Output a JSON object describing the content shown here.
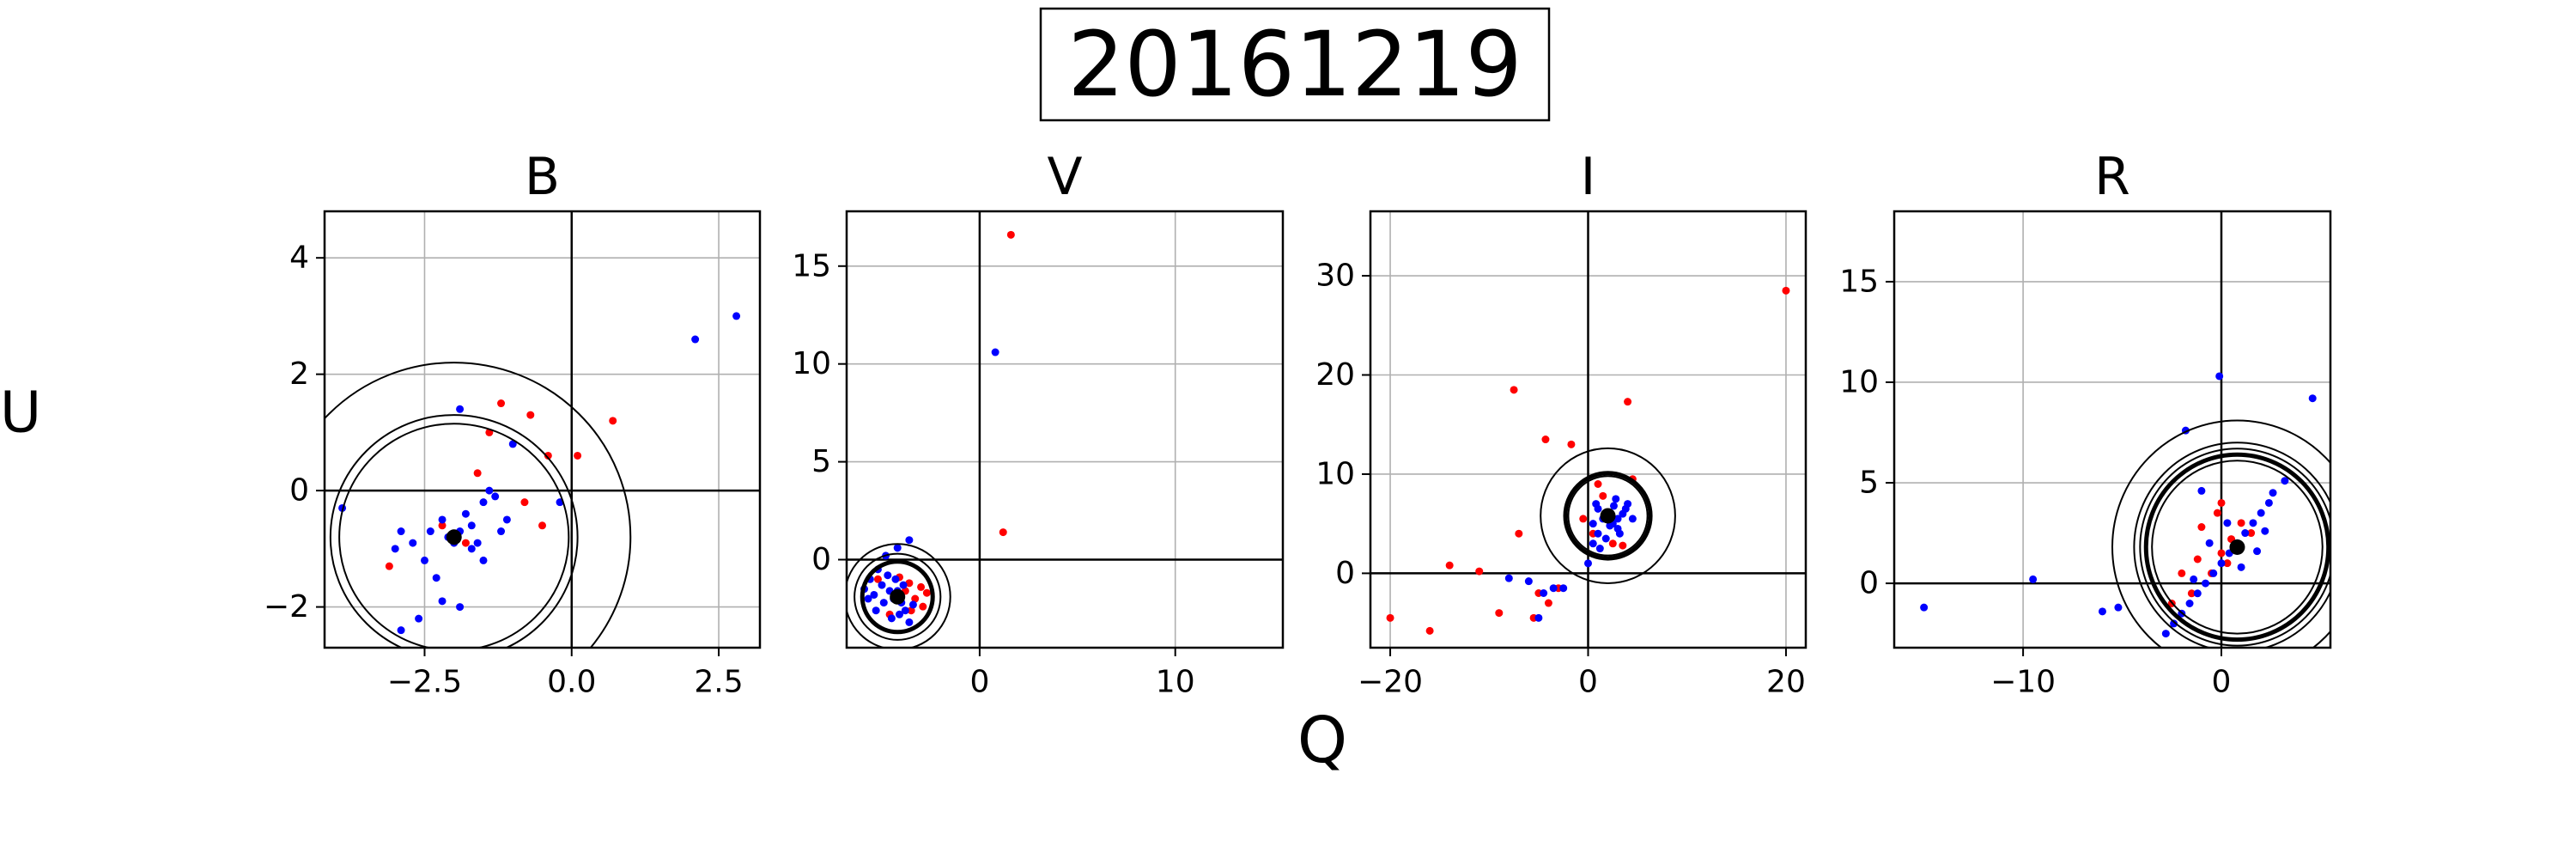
{
  "figure": {
    "title": "20161219",
    "xlabel": "Q",
    "ylabel": "U"
  },
  "chart_data": [
    {
      "type": "scatter",
      "title": "B",
      "xlim": [
        -4.2,
        3.2
      ],
      "ylim": [
        -2.7,
        4.8
      ],
      "xticks": [
        -2.5,
        0.0,
        2.5
      ],
      "xtick_labels": [
        "−2.5",
        "0.0",
        "2.5"
      ],
      "yticks": [
        -2,
        0,
        2,
        4
      ],
      "ytick_labels": [
        "−2",
        "0",
        "2",
        "4"
      ],
      "grid": true,
      "center": [
        -2.0,
        -0.8
      ],
      "circles": [
        {
          "r": 3.0,
          "bold": false
        },
        {
          "r": 2.1,
          "bold": false
        },
        {
          "r": 1.95,
          "bold": false
        }
      ],
      "series": [
        {
          "color": "#ff0000",
          "points": [
            [
              -1.2,
              1.5
            ],
            [
              -0.7,
              1.3
            ],
            [
              -0.4,
              0.6
            ],
            [
              -0.5,
              -0.6
            ],
            [
              0.7,
              1.2
            ],
            [
              0.1,
              0.6
            ],
            [
              -1.6,
              0.3
            ],
            [
              -3.1,
              -1.3
            ],
            [
              -1.8,
              -0.9
            ],
            [
              -0.8,
              -0.2
            ],
            [
              -2.2,
              -0.6
            ],
            [
              -1.4,
              1.0
            ]
          ]
        },
        {
          "color": "#0000ff",
          "points": [
            [
              -1.9,
              1.4
            ],
            [
              -1.0,
              0.8
            ],
            [
              2.8,
              3.0
            ],
            [
              2.1,
              2.6
            ],
            [
              -3.9,
              -0.3
            ],
            [
              -3.0,
              -1.0
            ],
            [
              -2.7,
              -0.9
            ],
            [
              -2.5,
              -1.2
            ],
            [
              -2.3,
              -1.5
            ],
            [
              -2.2,
              -0.5
            ],
            [
              -1.9,
              -0.7
            ],
            [
              -1.7,
              -0.6
            ],
            [
              -1.5,
              -0.2
            ],
            [
              -1.4,
              0.0
            ],
            [
              -1.3,
              -0.1
            ],
            [
              -1.6,
              -0.9
            ],
            [
              -1.8,
              -0.4
            ],
            [
              -2.0,
              -0.9
            ],
            [
              -2.6,
              -2.2
            ],
            [
              -2.9,
              -2.4
            ],
            [
              -1.9,
              -2.0
            ],
            [
              -1.2,
              -0.7
            ],
            [
              -2.4,
              -0.7
            ],
            [
              -2.2,
              -1.9
            ],
            [
              -0.2,
              -0.2
            ],
            [
              -2.9,
              -0.7
            ],
            [
              -1.1,
              -0.5
            ],
            [
              -1.7,
              -1.0
            ],
            [
              -2.1,
              -0.8
            ],
            [
              -1.5,
              -1.2
            ]
          ]
        }
      ]
    },
    {
      "type": "scatter",
      "title": "V",
      "xlim": [
        -6.8,
        15.5
      ],
      "ylim": [
        -4.5,
        17.8
      ],
      "xticks": [
        0,
        10
      ],
      "xtick_labels": [
        "0",
        "10"
      ],
      "yticks": [
        0,
        5,
        10,
        15
      ],
      "ytick_labels": [
        "0",
        "5",
        "10",
        "15"
      ],
      "grid": true,
      "center": [
        -4.2,
        -1.9
      ],
      "circles": [
        {
          "r": 2.7,
          "bold": false
        },
        {
          "r": 2.2,
          "bold": false
        },
        {
          "r": 1.8,
          "bold": true
        }
      ],
      "series": [
        {
          "color": "#ff0000",
          "points": [
            [
              1.6,
              16.6
            ],
            [
              1.2,
              1.4
            ],
            [
              -3.0,
              -1.4
            ],
            [
              -3.3,
              -2.0
            ],
            [
              -3.6,
              -1.2
            ],
            [
              -2.9,
              -2.4
            ],
            [
              -3.8,
              -1.6
            ],
            [
              -4.1,
              -0.9
            ],
            [
              -2.7,
              -1.7
            ],
            [
              -3.5,
              -2.6
            ],
            [
              -4.6,
              -2.8
            ],
            [
              -5.2,
              -1.0
            ]
          ]
        },
        {
          "color": "#0000ff",
          "points": [
            [
              0.8,
              10.6
            ],
            [
              -3.6,
              1.0
            ],
            [
              -4.2,
              0.6
            ],
            [
              -4.8,
              0.2
            ],
            [
              -5.2,
              -0.5
            ],
            [
              -5.6,
              -1.0
            ],
            [
              -5.0,
              -1.3
            ],
            [
              -4.6,
              -1.6
            ],
            [
              -4.4,
              -2.0
            ],
            [
              -4.0,
              -2.2
            ],
            [
              -3.8,
              -2.6
            ],
            [
              -4.9,
              -2.2
            ],
            [
              -5.3,
              -2.6
            ],
            [
              -4.5,
              -3.0
            ],
            [
              -3.6,
              -3.2
            ],
            [
              -5.7,
              -2.0
            ],
            [
              -5.9,
              -1.5
            ],
            [
              -4.3,
              -1.0
            ],
            [
              -3.9,
              -1.3
            ],
            [
              -4.7,
              -0.8
            ],
            [
              -5.4,
              -1.8
            ],
            [
              -4.1,
              -2.8
            ],
            [
              -3.4,
              -2.3
            ],
            [
              -4.2,
              -1.6
            ]
          ]
        }
      ]
    },
    {
      "type": "scatter",
      "title": "I",
      "xlim": [
        -22.0,
        22.0
      ],
      "ylim": [
        -7.5,
        36.5
      ],
      "xticks": [
        -20,
        0,
        20
      ],
      "xtick_labels": [
        "−20",
        "0",
        "20"
      ],
      "yticks": [
        0,
        10,
        20,
        30
      ],
      "ytick_labels": [
        "0",
        "10",
        "20",
        "30"
      ],
      "grid": true,
      "center": [
        2.0,
        5.8
      ],
      "circles": [
        {
          "r": 6.8,
          "bold": false
        },
        {
          "r": 4.3,
          "bold": true
        },
        {
          "r": 4.0,
          "bold": false
        }
      ],
      "series": [
        {
          "color": "#ff0000",
          "points": [
            [
              20.0,
              28.5
            ],
            [
              -7.5,
              18.5
            ],
            [
              4.0,
              17.3
            ],
            [
              -4.3,
              13.5
            ],
            [
              -1.7,
              13.0
            ],
            [
              -7.0,
              4.0
            ],
            [
              -14.0,
              0.8
            ],
            [
              -11.0,
              0.2
            ],
            [
              -16.0,
              -5.8
            ],
            [
              -20.0,
              -4.5
            ],
            [
              -9.0,
              -4.0
            ],
            [
              -5.0,
              -2.0
            ],
            [
              -3.0,
              -1.5
            ],
            [
              1.0,
              9.0
            ],
            [
              0.5,
              4.0
            ],
            [
              2.5,
              3.0
            ],
            [
              3.5,
              2.8
            ],
            [
              -0.5,
              5.5
            ],
            [
              1.5,
              7.8
            ],
            [
              4.5,
              9.5
            ],
            [
              -5.5,
              -4.5
            ],
            [
              -4.0,
              -3.0
            ]
          ]
        },
        {
          "color": "#0000ff",
          "points": [
            [
              -8.0,
              -0.5
            ],
            [
              -6.0,
              -0.8
            ],
            [
              -4.5,
              -2.0
            ],
            [
              -3.5,
              -1.5
            ],
            [
              -2.5,
              -1.5
            ],
            [
              -5.0,
              -4.5
            ],
            [
              0.0,
              1.0
            ],
            [
              0.5,
              3.0
            ],
            [
              1.0,
              4.0
            ],
            [
              1.5,
              5.5
            ],
            [
              2.0,
              6.0
            ],
            [
              2.5,
              5.0
            ],
            [
              3.0,
              4.5
            ],
            [
              3.5,
              6.0
            ],
            [
              4.0,
              7.0
            ],
            [
              1.0,
              6.5
            ],
            [
              0.5,
              5.0
            ],
            [
              2.8,
              7.5
            ],
            [
              3.2,
              4.0
            ],
            [
              4.5,
              5.5
            ],
            [
              1.8,
              3.5
            ],
            [
              2.2,
              4.8
            ],
            [
              0.8,
              7.0
            ],
            [
              3.8,
              6.5
            ],
            [
              1.2,
              2.5
            ],
            [
              2.6,
              6.8
            ],
            [
              3.0,
              5.5
            ]
          ]
        }
      ]
    },
    {
      "type": "scatter",
      "title": "R",
      "xlim": [
        -16.5,
        5.5
      ],
      "ylim": [
        -3.2,
        18.5
      ],
      "xticks": [
        -10,
        0
      ],
      "xtick_labels": [
        "−10",
        "0"
      ],
      "yticks": [
        0,
        5,
        10,
        15
      ],
      "ytick_labels": [
        "0",
        "5",
        "10",
        "15"
      ],
      "grid": true,
      "center": [
        0.8,
        1.8
      ],
      "circles": [
        {
          "r": 6.3,
          "bold": false
        },
        {
          "r": 5.2,
          "bold": false
        },
        {
          "r": 4.9,
          "bold": false
        },
        {
          "r": 4.6,
          "bold": true
        },
        {
          "r": 4.3,
          "bold": false
        }
      ],
      "series": [
        {
          "color": "#ff0000",
          "points": [
            [
              -1.5,
              -0.5
            ],
            [
              -0.5,
              0.5
            ],
            [
              0.0,
              1.5
            ],
            [
              0.5,
              2.2
            ],
            [
              1.0,
              3.0
            ],
            [
              -1.0,
              2.8
            ],
            [
              -0.2,
              3.5
            ],
            [
              0.3,
              1.0
            ],
            [
              1.5,
              2.5
            ],
            [
              -2.0,
              0.5
            ],
            [
              -2.5,
              -1.0
            ],
            [
              0.0,
              4.0
            ],
            [
              -1.2,
              1.2
            ]
          ]
        },
        {
          "color": "#0000ff",
          "points": [
            [
              -15.0,
              -1.2
            ],
            [
              -9.5,
              0.2
            ],
            [
              -6.0,
              -1.4
            ],
            [
              -5.2,
              -1.2
            ],
            [
              -2.8,
              -2.5
            ],
            [
              -2.4,
              -2.0
            ],
            [
              -2.0,
              -1.5
            ],
            [
              -1.6,
              -1.0
            ],
            [
              -1.2,
              -0.5
            ],
            [
              -0.8,
              0.0
            ],
            [
              -0.4,
              0.5
            ],
            [
              0.0,
              1.0
            ],
            [
              0.4,
              1.5
            ],
            [
              0.8,
              2.0
            ],
            [
              1.2,
              2.5
            ],
            [
              1.6,
              3.0
            ],
            [
              2.0,
              3.5
            ],
            [
              2.4,
              4.0
            ],
            [
              2.6,
              4.5
            ],
            [
              -1.0,
              4.6
            ],
            [
              -1.8,
              7.6
            ],
            [
              -0.1,
              10.3
            ],
            [
              4.6,
              9.2
            ],
            [
              3.2,
              5.1
            ],
            [
              -0.6,
              2.0
            ],
            [
              0.3,
              3.0
            ],
            [
              1.0,
              0.8
            ],
            [
              2.2,
              2.6
            ],
            [
              -1.4,
              0.2
            ],
            [
              1.8,
              1.6
            ]
          ]
        }
      ]
    }
  ]
}
